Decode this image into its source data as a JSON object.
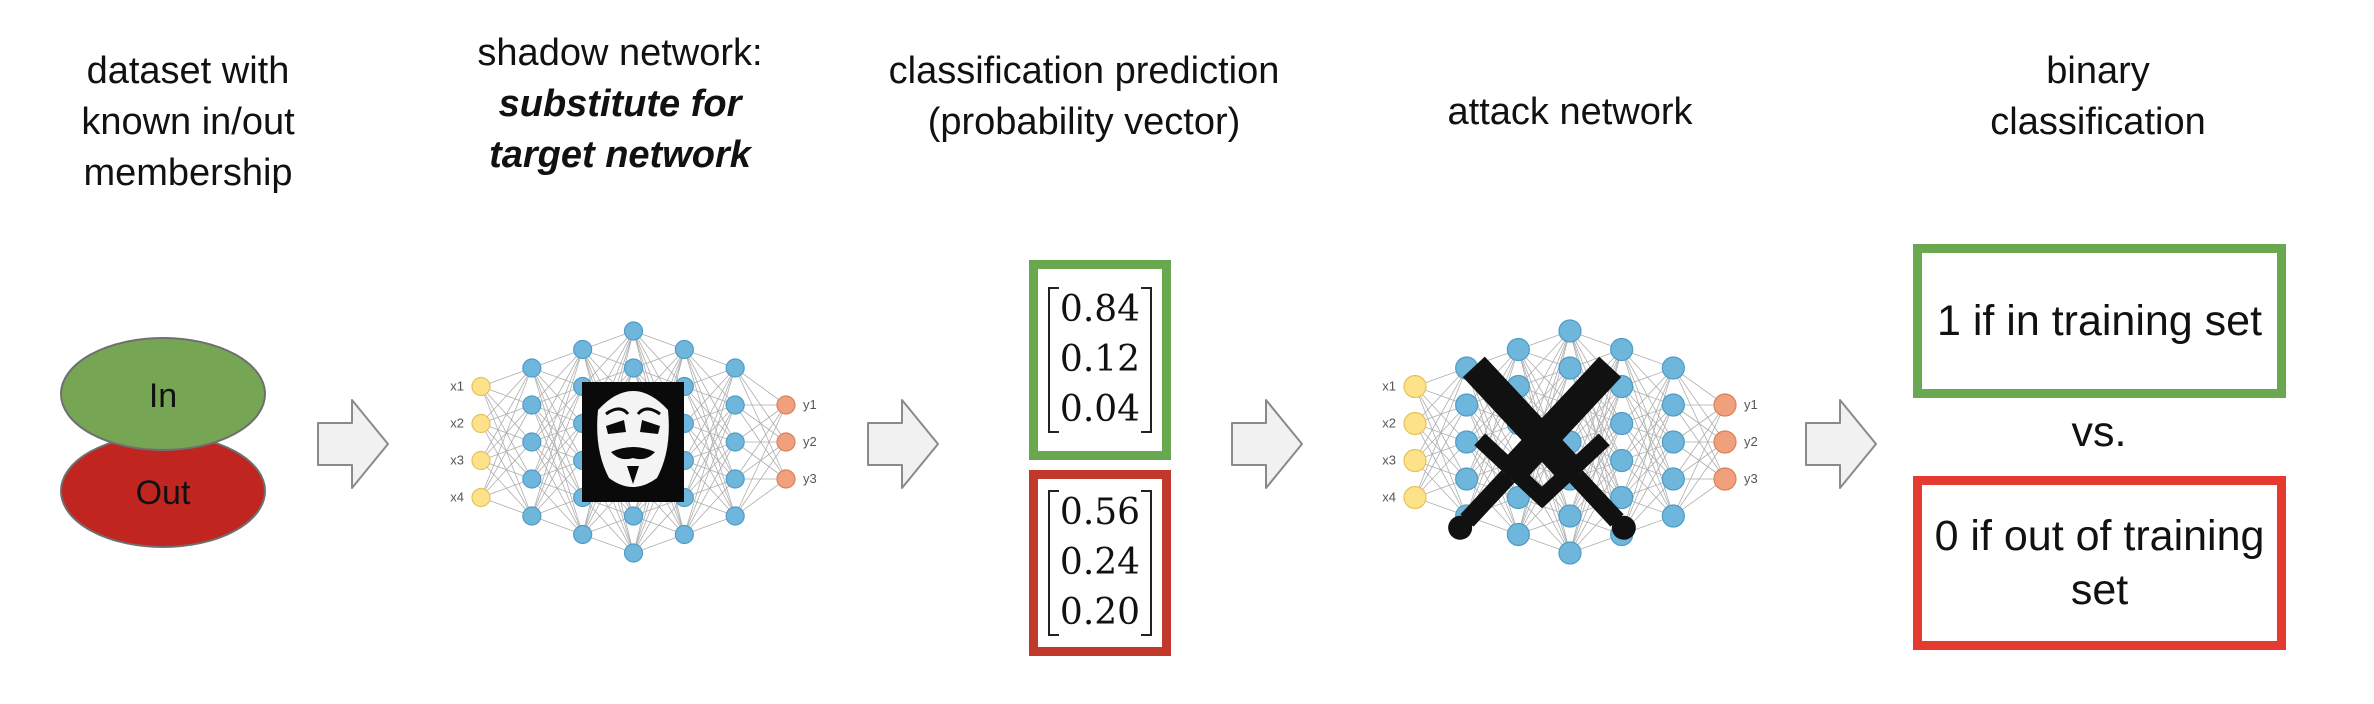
{
  "columns": {
    "dataset": {
      "lines": [
        "dataset with",
        "known in/out",
        "membership"
      ]
    },
    "shadow": {
      "line1": "shadow network:",
      "bold_lines": [
        "substitute for",
        "target network"
      ]
    },
    "prediction": {
      "lines": [
        "classification prediction",
        "(probability vector)"
      ]
    },
    "attack": {
      "lines": [
        "attack network"
      ]
    },
    "binary": {
      "lines": [
        "binary",
        "classification"
      ]
    }
  },
  "dataset": {
    "in_label": "In",
    "out_label": "Out",
    "in_color": "#76a553",
    "out_color": "#c0261f"
  },
  "shadow_network": {
    "inputs": [
      "x1",
      "x2",
      "x3",
      "x4"
    ],
    "outputs": [
      "y1",
      "y2",
      "y3"
    ],
    "overlay_icon": "anonymous-mask-icon"
  },
  "prediction_vectors": {
    "in": [
      "0.84",
      "0.12",
      "0.04"
    ],
    "out": [
      "0.56",
      "0.24",
      "0.20"
    ]
  },
  "attack_network": {
    "inputs": [
      "x1",
      "x2",
      "x3",
      "x4"
    ],
    "outputs": [
      "y1",
      "y2",
      "y3"
    ],
    "overlay_icon": "crossed-swords-icon"
  },
  "binary_output": {
    "in_text": "1 if in training set",
    "vs_text": "vs.",
    "out_text": "0 if out of training set"
  },
  "colors": {
    "green": "#6aa84f",
    "red": "#e43a2f",
    "dark_red": "#c0392b",
    "node_blue": "#6fb6dc",
    "node_yellow": "#fde28a",
    "node_orange": "#f0a07c"
  }
}
